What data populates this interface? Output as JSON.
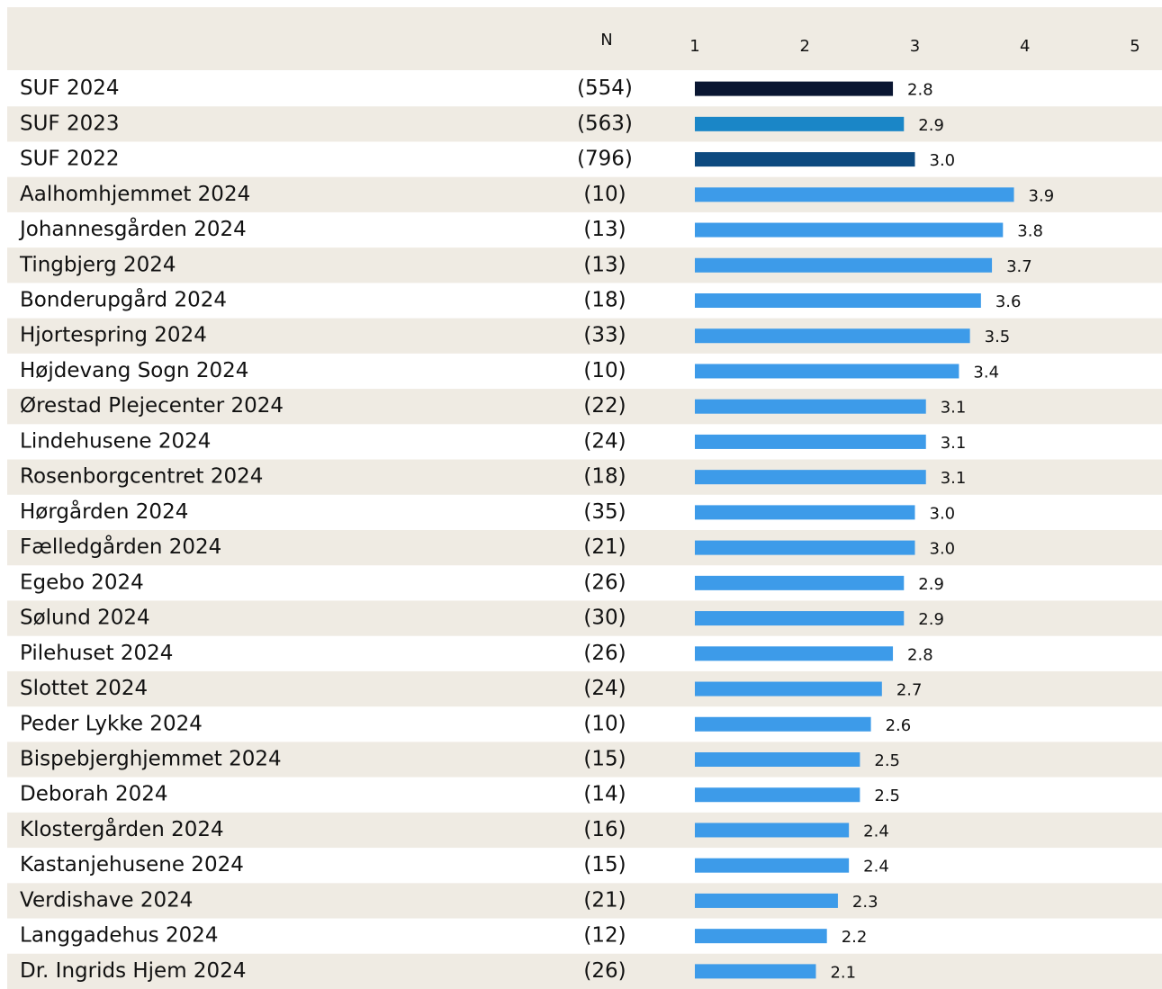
{
  "chart_data": {
    "type": "bar",
    "n_header": "N",
    "categories": [
      "SUF 2024",
      "SUF 2023",
      "SUF 2022",
      "Aalhomhjemmet 2024",
      "Johannesgården 2024",
      "Tingbjerg 2024",
      "Bonderupgård 2024",
      "Hjortespring 2024",
      "Højdevang Sogn 2024",
      "Ørestad Plejecenter 2024",
      "Lindehusene 2024",
      "Rosenborgcentret 2024",
      "Hørgården 2024",
      "Fælledgården 2024",
      "Egebo 2024",
      "Sølund 2024",
      "Pilehuset 2024",
      "Slottet 2024",
      "Peder Lykke 2024",
      "Bispebjerghjemmet 2024",
      "Deborah 2024",
      "Klostergården 2024",
      "Kastanjehusene 2024",
      "Verdishave 2024",
      "Langgadehus 2024",
      "Dr. Ingrids Hjem 2024"
    ],
    "n_labels": [
      "(554)",
      "(563)",
      "(796)",
      "(10)",
      "(13)",
      "(13)",
      "(18)",
      "(33)",
      "(10)",
      "(22)",
      "(24)",
      "(18)",
      "(35)",
      "(21)",
      "(26)",
      "(30)",
      "(26)",
      "(24)",
      "(10)",
      "(15)",
      "(14)",
      "(16)",
      "(15)",
      "(21)",
      "(12)",
      "(26)"
    ],
    "values": [
      2.8,
      2.9,
      3.0,
      3.9,
      3.8,
      3.7,
      3.6,
      3.5,
      3.4,
      3.1,
      3.1,
      3.1,
      3.0,
      3.0,
      2.9,
      2.9,
      2.8,
      2.7,
      2.6,
      2.5,
      2.5,
      2.4,
      2.4,
      2.3,
      2.2,
      2.1
    ],
    "value_labels": [
      "2.8",
      "2.9",
      "3.0",
      "3.9",
      "3.8",
      "3.7",
      "3.6",
      "3.5",
      "3.4",
      "3.1",
      "3.1",
      "3.1",
      "3.0",
      "3.0",
      "2.9",
      "2.9",
      "2.8",
      "2.7",
      "2.6",
      "2.5",
      "2.5",
      "2.4",
      "2.4",
      "2.3",
      "2.2",
      "2.1"
    ],
    "colors": [
      "#0a1632",
      "#1a86c7",
      "#0d4a80",
      "#3d9be9",
      "#3d9be9",
      "#3d9be9",
      "#3d9be9",
      "#3d9be9",
      "#3d9be9",
      "#3d9be9",
      "#3d9be9",
      "#3d9be9",
      "#3d9be9",
      "#3d9be9",
      "#3d9be9",
      "#3d9be9",
      "#3d9be9",
      "#3d9be9",
      "#3d9be9",
      "#3d9be9",
      "#3d9be9",
      "#3d9be9",
      "#3d9be9",
      "#3d9be9",
      "#3d9be9",
      "#3d9be9"
    ],
    "xlim": [
      1,
      5
    ],
    "xticks": [
      1,
      2,
      3,
      4,
      5
    ]
  }
}
